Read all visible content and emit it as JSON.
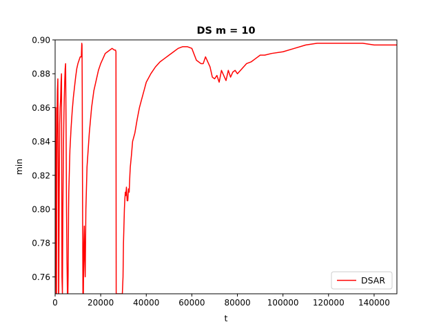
{
  "chart_data": {
    "type": "line",
    "title": "DS m = 10",
    "xlabel": "t",
    "ylabel": "min",
    "xlim": [
      0,
      150000
    ],
    "ylim": [
      0.75,
      0.9
    ],
    "xticks": [
      0,
      20000,
      40000,
      60000,
      80000,
      100000,
      120000,
      140000
    ],
    "xtick_labels": [
      "0",
      "20000",
      "40000",
      "60000",
      "80000",
      "100000",
      "120000",
      "140000"
    ],
    "yticks": [
      0.76,
      0.78,
      0.8,
      0.82,
      0.84,
      0.86,
      0.88,
      0.9
    ],
    "ytick_labels": [
      "0.76",
      "0.78",
      "0.80",
      "0.82",
      "0.84",
      "0.86",
      "0.88",
      "0.90"
    ],
    "grid": false,
    "legend_position": "lower-right",
    "series": [
      {
        "name": "DSAR",
        "color": "#ff0000",
        "x": [
          0,
          100,
          200,
          300,
          400,
          500,
          600,
          700,
          800,
          900,
          1000,
          1200,
          1400,
          1500,
          1600,
          1700,
          1800,
          1900,
          2000,
          2200,
          2400,
          2600,
          2800,
          3000,
          3200,
          3400,
          3600,
          3800,
          4000,
          4200,
          4400,
          4600,
          4800,
          5000,
          5200,
          5400,
          5500,
          5600,
          5700,
          5800,
          5900,
          6000,
          6200,
          6500,
          7000,
          7500,
          8000,
          8500,
          9000,
          9500,
          10000,
          10500,
          11000,
          11500,
          11700,
          11800,
          11900,
          12000,
          12200,
          12400,
          12600,
          12800,
          13000,
          13200,
          13500,
          14000,
          15000,
          16000,
          17000,
          18000,
          19000,
          20000,
          21000,
          22000,
          23000,
          24000,
          25000,
          26000,
          26500,
          26700,
          26800,
          26900,
          27000,
          27500,
          28000,
          28500,
          29000,
          29500,
          29800,
          30000,
          30200,
          30400,
          30600,
          30800,
          31000,
          31300,
          31600,
          31900,
          32200,
          32500,
          32800,
          33000,
          33500,
          34000,
          35000,
          36000,
          37000,
          38000,
          39000,
          40000,
          42000,
          44000,
          46000,
          48000,
          50000,
          52000,
          54000,
          56000,
          58000,
          60000,
          62000,
          64000,
          65000,
          66000,
          68000,
          69000,
          70000,
          71000,
          72000,
          73000,
          74000,
          75000,
          76000,
          77000,
          78000,
          79000,
          80000,
          82000,
          84000,
          86000,
          88000,
          90000,
          92000,
          95000,
          100000,
          105000,
          110000,
          115000,
          120000,
          125000,
          130000,
          135000,
          140000,
          145000,
          150000
        ],
        "values": [
          0.75,
          0.86,
          0.8,
          0.86,
          0.78,
          0.75,
          0.75,
          0.8,
          0.84,
          0.86,
          0.87,
          0.877,
          0.82,
          0.75,
          0.75,
          0.78,
          0.81,
          0.83,
          0.85,
          0.86,
          0.865,
          0.875,
          0.88,
          0.76,
          0.75,
          0.8,
          0.83,
          0.85,
          0.865,
          0.875,
          0.883,
          0.886,
          0.85,
          0.8,
          0.77,
          0.75,
          0.75,
          0.75,
          0.76,
          0.78,
          0.8,
          0.81,
          0.82,
          0.835,
          0.848,
          0.858,
          0.866,
          0.872,
          0.878,
          0.883,
          0.886,
          0.888,
          0.89,
          0.89,
          0.898,
          0.897,
          0.87,
          0.82,
          0.75,
          0.75,
          0.78,
          0.79,
          0.77,
          0.76,
          0.8,
          0.825,
          0.845,
          0.86,
          0.87,
          0.876,
          0.882,
          0.886,
          0.889,
          0.892,
          0.893,
          0.894,
          0.895,
          0.894,
          0.894,
          0.893,
          0.75,
          0.75,
          0.75,
          0.75,
          0.75,
          0.75,
          0.75,
          0.75,
          0.76,
          0.78,
          0.79,
          0.8,
          0.806,
          0.81,
          0.808,
          0.813,
          0.805,
          0.805,
          0.812,
          0.81,
          0.82,
          0.825,
          0.832,
          0.84,
          0.845,
          0.853,
          0.86,
          0.865,
          0.87,
          0.875,
          0.88,
          0.884,
          0.887,
          0.889,
          0.891,
          0.893,
          0.895,
          0.896,
          0.896,
          0.895,
          0.888,
          0.886,
          0.886,
          0.89,
          0.884,
          0.878,
          0.877,
          0.879,
          0.875,
          0.882,
          0.879,
          0.876,
          0.882,
          0.878,
          0.881,
          0.882,
          0.88,
          0.883,
          0.886,
          0.887,
          0.889,
          0.891,
          0.891,
          0.892,
          0.893,
          0.895,
          0.897,
          0.898,
          0.898,
          0.898,
          0.898,
          0.898,
          0.897,
          0.897,
          0.897
        ]
      }
    ]
  }
}
